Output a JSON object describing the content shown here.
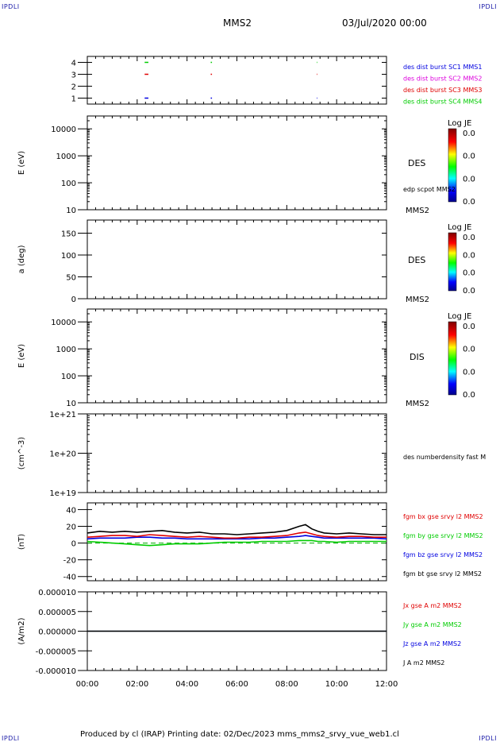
{
  "header": {
    "corner_left": "IPDLI",
    "corner_right": "IPDLI",
    "spacecraft": "MMS2",
    "date": "03/Jul/2020 00:00",
    "footer_corner_left": "IPDLI",
    "footer_corner_right": "IPDLI"
  },
  "footer": {
    "text": "Produced by cl (IRAP)   Printing date: 02/Dec/2023   mms_mms2_srvy_vue_web1.cl"
  },
  "colors": {
    "black": "#000000",
    "red": "#e00000",
    "green": "#00cc00",
    "blue": "#0000e0",
    "magenta": "#dd00dd"
  },
  "chart_data": [
    {
      "id": "burst",
      "type": "scatter",
      "ylim": [
        0.5,
        4.5
      ],
      "yticks": [
        "1",
        "2",
        "3",
        "4"
      ],
      "ytick_values": [
        1,
        2,
        3,
        4
      ],
      "xlim": [
        0,
        12
      ],
      "series": [
        {
          "name": "des dist burst SC1 MMS1",
          "color": "#0000e0",
          "y": 1,
          "segments": [
            [
              2.3,
              2.45
            ],
            [
              4.95,
              5.0
            ],
            [
              9.2,
              9.22
            ]
          ]
        },
        {
          "name": "des dist burst SC2 MMS2",
          "color": "#dd00dd",
          "y": 2,
          "segments": []
        },
        {
          "name": "des dist burst SC3 MMS3",
          "color": "#e00000",
          "y": 3,
          "segments": [
            [
              2.3,
              2.45
            ],
            [
              4.95,
              5.0
            ],
            [
              9.2,
              9.22
            ]
          ]
        },
        {
          "name": "des dist burst SC4 MMS4",
          "color": "#00cc00",
          "y": 4,
          "segments": [
            [
              2.3,
              2.45
            ],
            [
              4.95,
              5.0
            ],
            [
              9.2,
              9.22
            ]
          ]
        }
      ]
    },
    {
      "id": "des-energy",
      "type": "heatmap",
      "ylabel": "E (eV)",
      "scale": "log",
      "ylim": [
        10,
        30000
      ],
      "yticks": [
        "10",
        "100",
        "1000",
        "10000"
      ],
      "ytick_values": [
        10,
        100,
        1000,
        10000
      ],
      "labels": [
        "DES",
        "edp scpot MMS2",
        "MMS2"
      ],
      "colorbar": {
        "title": "Log JE",
        "ticks": [
          "0.0",
          "0.0",
          "0.0",
          "0.0"
        ]
      }
    },
    {
      "id": "des-pitch",
      "type": "heatmap",
      "ylabel": "a (deg)",
      "ylim": [
        0,
        180
      ],
      "yticks": [
        "0",
        "50",
        "100",
        "150"
      ],
      "ytick_values": [
        0,
        50,
        100,
        150
      ],
      "labels": [
        "DES",
        "MMS2"
      ],
      "colorbar": {
        "title": "Log JE",
        "ticks": [
          "0.0",
          "0.0",
          "0.0",
          "0.0"
        ]
      }
    },
    {
      "id": "dis-energy",
      "type": "heatmap",
      "ylabel": "E (eV)",
      "scale": "log",
      "ylim": [
        10,
        30000
      ],
      "yticks": [
        "10",
        "100",
        "1000",
        "10000"
      ],
      "ytick_values": [
        10,
        100,
        1000,
        10000
      ],
      "labels": [
        "DIS",
        "MMS2"
      ],
      "colorbar": {
        "title": "Log JE",
        "ticks": [
          "0.0",
          "0.0",
          "0.0",
          "0.0"
        ]
      }
    },
    {
      "id": "density",
      "type": "line",
      "ylabel": "(cm^-3)",
      "scale": "log",
      "ylim": [
        1e+19,
        1e+21
      ],
      "yticks": [
        "1e+19",
        "1e+20",
        "1e+21"
      ],
      "ytick_values": [
        1e+19,
        1e+20,
        1e+21
      ],
      "legend": [
        {
          "name": "des numberdensity fast M",
          "color": "#000000"
        }
      ]
    },
    {
      "id": "fgm",
      "type": "line",
      "ylabel": "(nT)",
      "ylim": [
        -45,
        48
      ],
      "yticks": [
        "-40",
        "-20",
        "0",
        "20",
        "40"
      ],
      "ytick_values": [
        -40,
        -20,
        0,
        20,
        40
      ],
      "x": [
        0,
        0.5,
        1,
        1.5,
        2,
        2.5,
        3,
        3.5,
        4,
        4.5,
        5,
        5.5,
        6,
        6.5,
        7,
        7.5,
        8,
        8.5,
        8.75,
        9,
        9.25,
        9.5,
        10,
        10.5,
        11,
        11.5,
        12
      ],
      "series": [
        {
          "name": "fgm bx gse srvy l2 MMS2",
          "color": "#e00000",
          "values": [
            7,
            8,
            9,
            9,
            8,
            10,
            9,
            8,
            7,
            8,
            7,
            6,
            6,
            7,
            7,
            8,
            9,
            12,
            13,
            11,
            9,
            8,
            7,
            8,
            8,
            7,
            7
          ]
        },
        {
          "name": "fgm by gse srvy l2 MMS2",
          "color": "#00cc00",
          "values": [
            2,
            1,
            0,
            -1,
            -2,
            -3,
            -2,
            -1,
            -1,
            -1,
            0,
            1,
            1,
            1,
            2,
            2,
            2,
            3,
            3,
            3,
            2,
            2,
            1,
            2,
            2,
            2,
            2
          ]
        },
        {
          "name": "fgm bz gse srvy l2 MMS2",
          "color": "#0000e0",
          "values": [
            5,
            6,
            6,
            6,
            7,
            7,
            6,
            6,
            5,
            5,
            5,
            5,
            5,
            5,
            6,
            6,
            7,
            8,
            9,
            8,
            7,
            6,
            6,
            6,
            6,
            6,
            5
          ]
        },
        {
          "name": "fgm bt gse srvy l2 MMS2",
          "color": "#000000",
          "values": [
            12,
            14,
            13,
            14,
            13,
            14,
            15,
            13,
            12,
            13,
            11,
            11,
            10,
            11,
            12,
            13,
            15,
            20,
            22,
            17,
            14,
            12,
            11,
            12,
            11,
            10,
            10
          ]
        }
      ]
    },
    {
      "id": "current",
      "type": "line",
      "ylabel": "(A/m2)",
      "ylim": [
        -1e-05,
        1e-05
      ],
      "yticks": [
        "-0.000010",
        "-0.000005",
        "0.000000",
        "0.000005",
        "0.000010"
      ],
      "ytick_values": [
        -1e-05,
        -5e-06,
        0,
        5e-06,
        1e-05
      ],
      "x": [
        0,
        12
      ],
      "series": [
        {
          "name": "Jx gse A m2 MMS2",
          "color": "#e00000",
          "values": [
            0,
            0
          ]
        },
        {
          "name": "Jy gse A m2 MMS2",
          "color": "#00cc00",
          "values": [
            0,
            0
          ]
        },
        {
          "name": "Jz gse A m2 MMS2",
          "color": "#0000e0",
          "values": [
            0,
            0
          ]
        },
        {
          "name": "J A m2 MMS2",
          "color": "#000000",
          "values": [
            0,
            0
          ]
        }
      ]
    }
  ],
  "xaxis": {
    "xlim": [
      0,
      12
    ],
    "ticks": [
      "00:00",
      "02:00",
      "04:00",
      "06:00",
      "08:00",
      "10:00",
      "12:00"
    ],
    "tick_values": [
      0,
      2,
      4,
      6,
      8,
      10,
      12
    ]
  }
}
